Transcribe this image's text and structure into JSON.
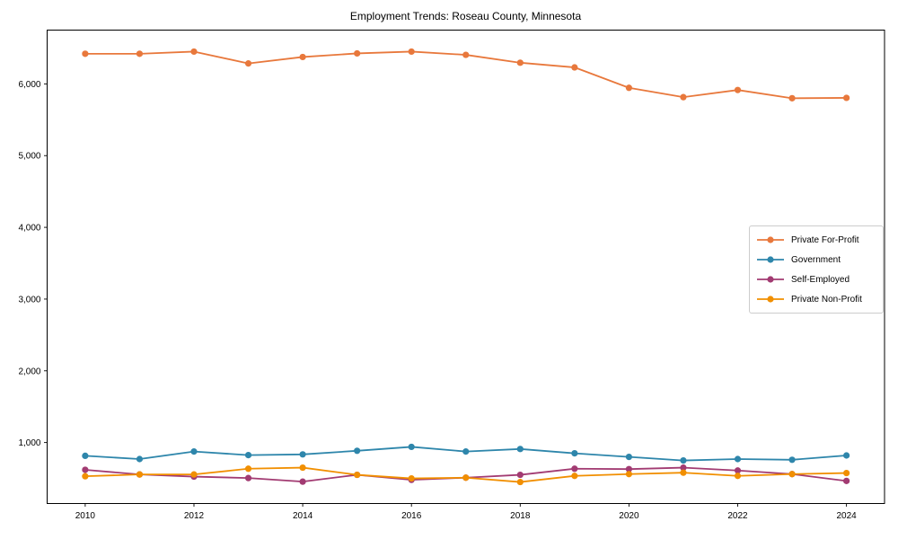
{
  "figure": {
    "background": "#ffffff",
    "spine_color": "#000000",
    "text_color": "#000000"
  },
  "chart_data": {
    "type": "line",
    "title": "Employment Trends: Roseau County, Minnesota",
    "xlabel": "",
    "ylabel": "",
    "grid": false,
    "legend_position": "center-right",
    "xlim": [
      2009.3,
      2024.7
    ],
    "ylim": [
      150,
      6750
    ],
    "xticks": [
      2010,
      2012,
      2014,
      2016,
      2018,
      2020,
      2022,
      2024
    ],
    "xtick_labels": [
      "2010",
      "2012",
      "2014",
      "2016",
      "2018",
      "2020",
      "2022",
      "2024"
    ],
    "yticks": [
      1000,
      2000,
      3000,
      4000,
      5000,
      6000
    ],
    "ytick_labels": [
      "1,000",
      "2,000",
      "3,000",
      "4,000",
      "5,000",
      "6,000"
    ],
    "x": [
      2010,
      2011,
      2012,
      2013,
      2014,
      2015,
      2016,
      2017,
      2018,
      2019,
      2020,
      2021,
      2022,
      2023,
      2024
    ],
    "series": [
      {
        "name": "Private For-Profit",
        "color": "#E8783C",
        "values": [
          6420,
          6420,
          6450,
          6285,
          6375,
          6425,
          6450,
          6405,
          6295,
          6230,
          5945,
          5815,
          5915,
          5800,
          5805
        ]
      },
      {
        "name": "Government",
        "color": "#2E86AB",
        "values": [
          815,
          770,
          875,
          825,
          835,
          885,
          940,
          875,
          910,
          850,
          800,
          750,
          770,
          760,
          820
        ]
      },
      {
        "name": "Self-Employed",
        "color": "#A23B72",
        "values": [
          620,
          555,
          525,
          505,
          455,
          550,
          480,
          510,
          550,
          635,
          630,
          650,
          610,
          560,
          465
        ]
      },
      {
        "name": "Private Non-Profit",
        "color": "#F18F01",
        "values": [
          530,
          555,
          555,
          635,
          650,
          550,
          500,
          510,
          450,
          535,
          560,
          580,
          535,
          560,
          575
        ]
      }
    ]
  }
}
